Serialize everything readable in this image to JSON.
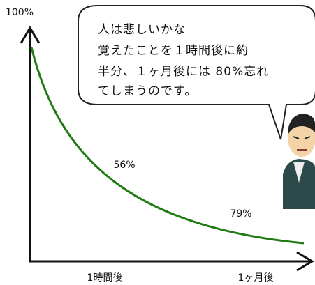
{
  "axis": {
    "y_label": "100%",
    "x_labels": [
      "1時間後",
      "1ヶ月後"
    ]
  },
  "annotations": [
    "56%",
    "79%"
  ],
  "bubble": {
    "lines": [
      "人は悲しいかな",
      "覚えたことを１時間後に約",
      "半分、１ヶ月後には 80%忘れ",
      "てしまうのです。"
    ]
  }
}
